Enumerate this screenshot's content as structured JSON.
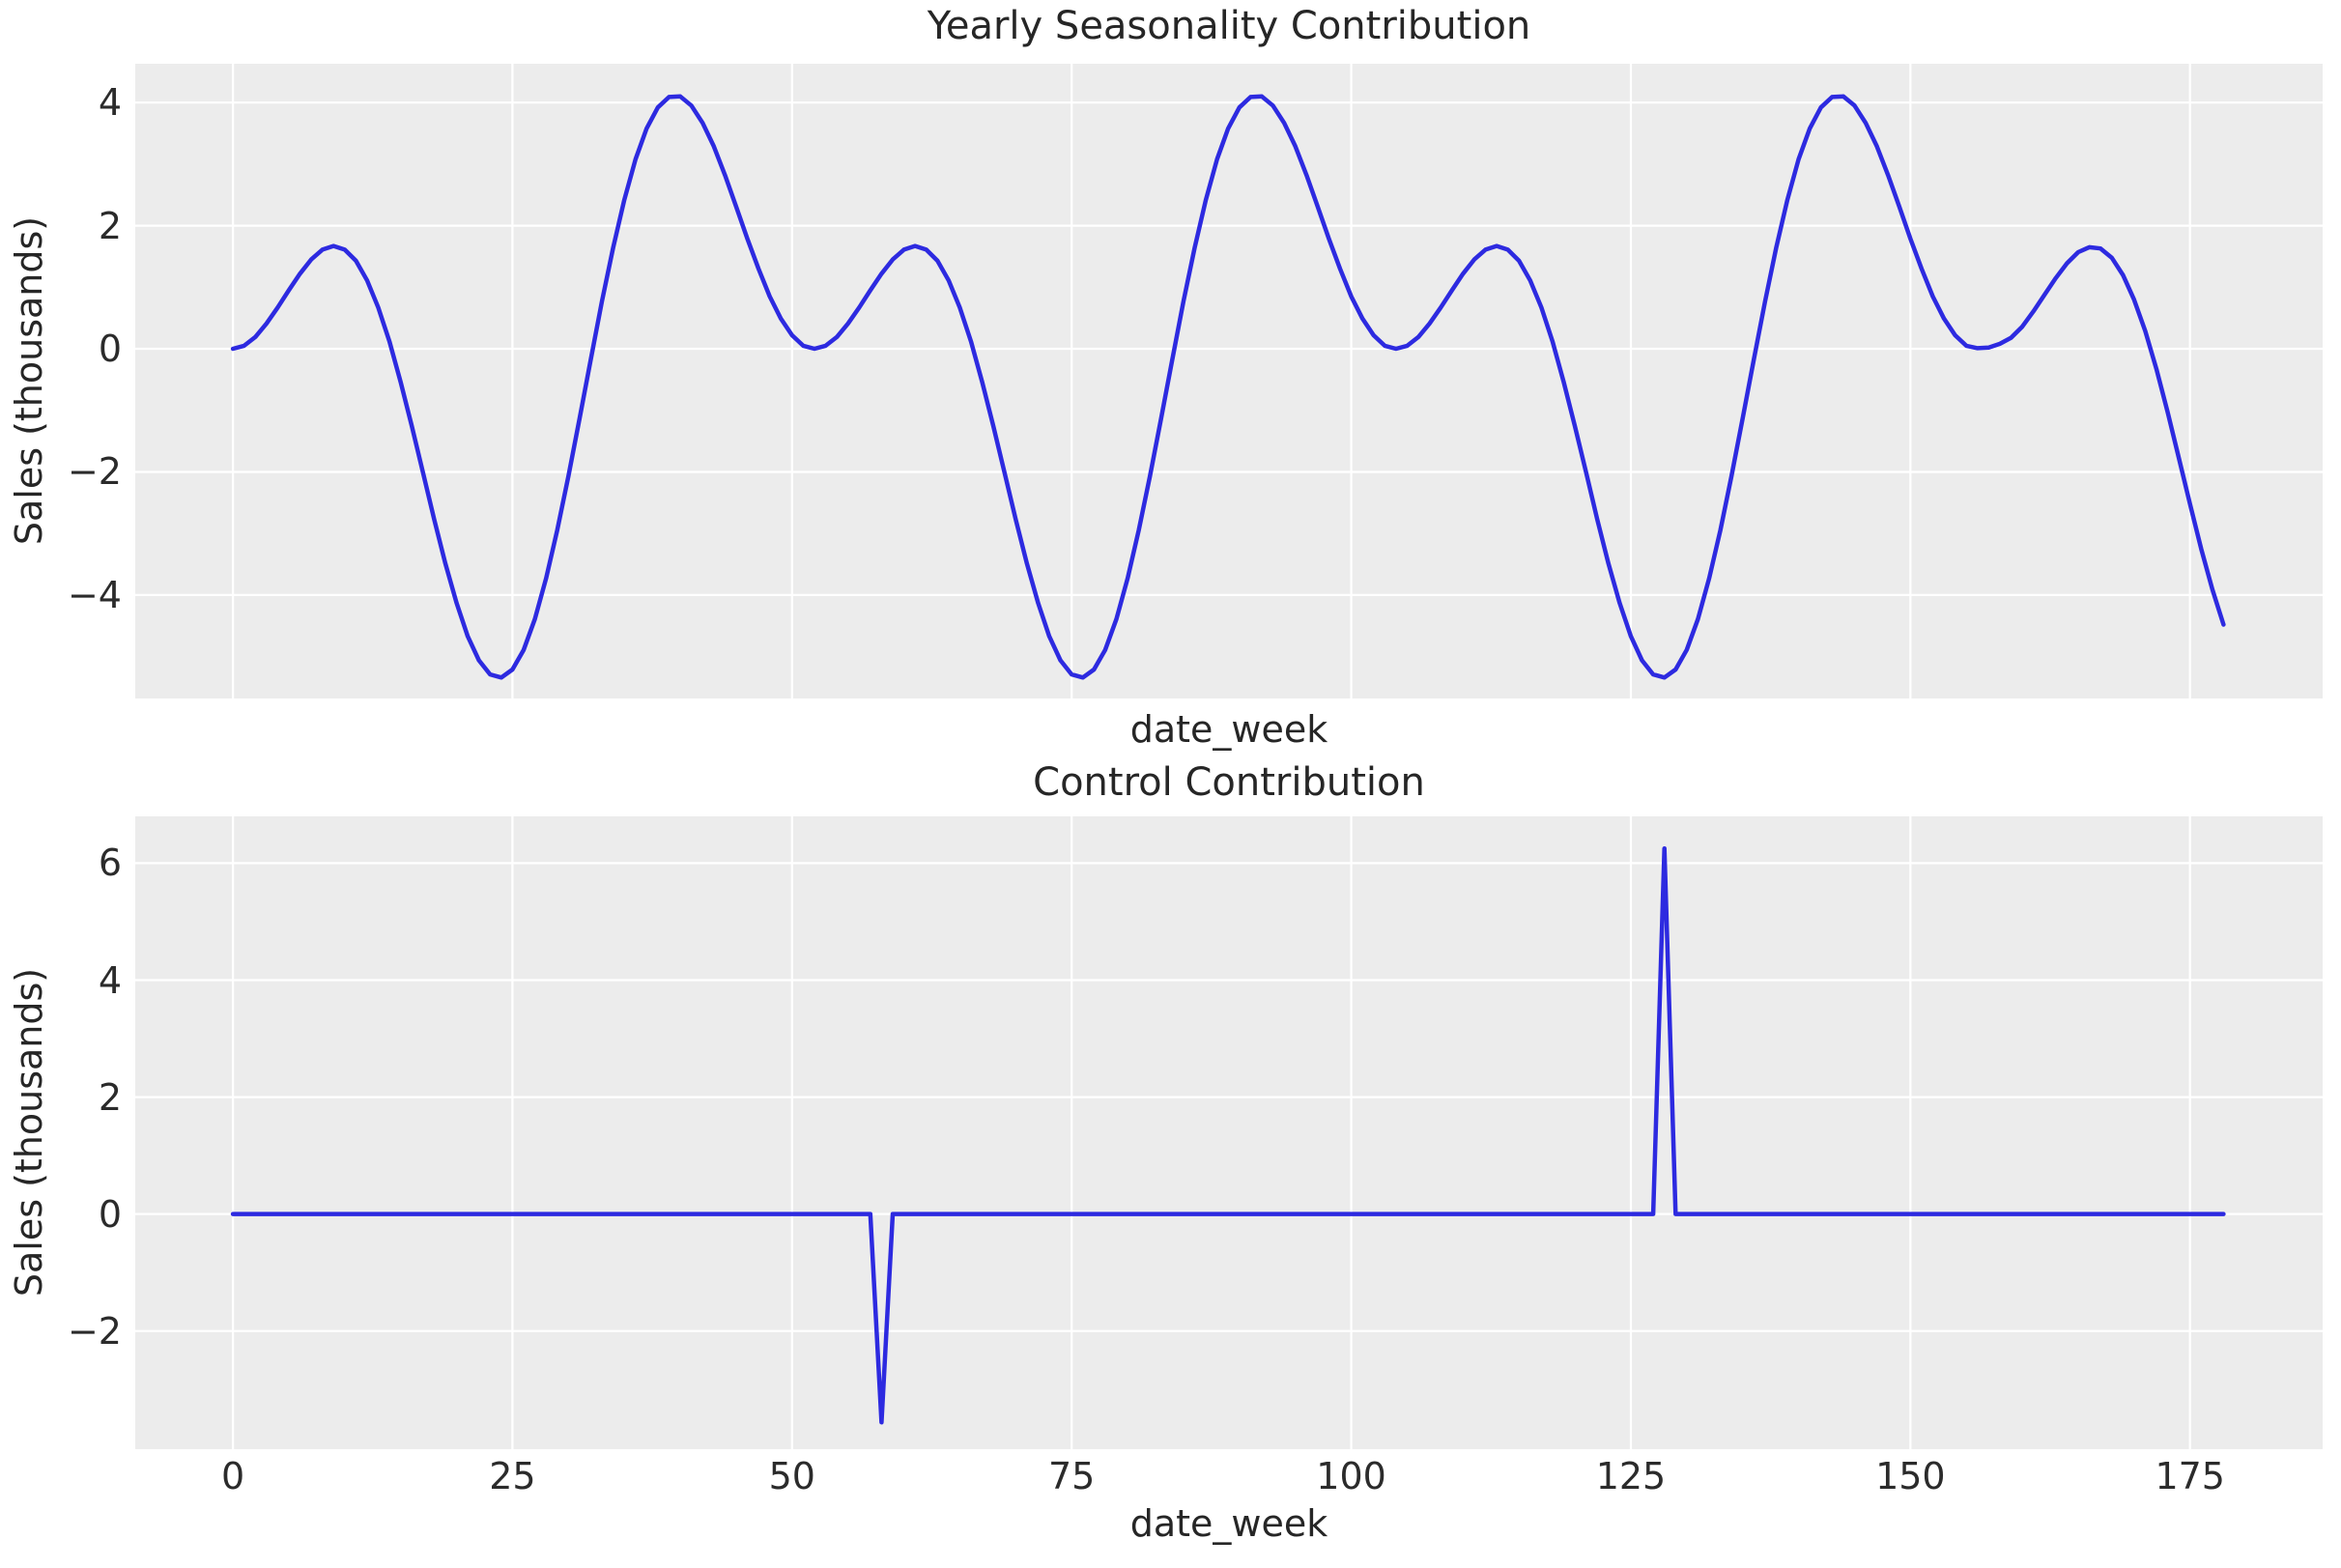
{
  "style": {
    "figure_bg": "#ffffff",
    "plot_bg": "#ececec",
    "grid_color": "#ffffff",
    "line_color": "#2d2ae0",
    "text_color": "#262626"
  },
  "chart_data": [
    {
      "type": "line",
      "title": "Yearly Seasonality Contribution",
      "xlabel": "date_week",
      "ylabel": "Sales (thousands)",
      "legend_position": "none",
      "grid": true,
      "x_start": 0,
      "x_step": 1,
      "x_end": 178,
      "xlim": [
        -8.73,
        186.86
      ],
      "ylim": [
        -5.68,
        4.63
      ],
      "xticks": [
        0,
        25,
        50,
        75,
        100,
        125,
        150,
        175
      ],
      "show_xtick_labels": false,
      "yticks": [
        4,
        2,
        0,
        -2,
        -4
      ],
      "values": [
        0,
        0.05,
        0.19,
        0.41,
        0.67,
        0.95,
        1.22,
        1.45,
        1.61,
        1.67,
        1.61,
        1.43,
        1.11,
        0.67,
        0.12,
        -0.54,
        -1.26,
        -2.01,
        -2.77,
        -3.49,
        -4.13,
        -4.67,
        -5.06,
        -5.29,
        -5.34,
        -5.21,
        -4.89,
        -4.39,
        -3.73,
        -2.95,
        -2.07,
        -1.13,
        -0.17,
        0.77,
        1.64,
        2.42,
        3.08,
        3.58,
        3.92,
        4.09,
        4.1,
        3.95,
        3.67,
        3.29,
        2.82,
        2.31,
        1.79,
        1.3,
        0.85,
        0.49,
        0.22,
        0.05,
        0,
        0.05,
        0.19,
        0.41,
        0.67,
        0.95,
        1.22,
        1.45,
        1.61,
        1.67,
        1.61,
        1.43,
        1.11,
        0.67,
        0.12,
        -0.54,
        -1.26,
        -2.01,
        -2.77,
        -3.49,
        -4.13,
        -4.67,
        -5.06,
        -5.29,
        -5.34,
        -5.21,
        -4.89,
        -4.39,
        -3.73,
        -2.95,
        -2.07,
        -1.13,
        -0.17,
        0.77,
        1.64,
        2.42,
        3.08,
        3.58,
        3.92,
        4.09,
        4.1,
        3.95,
        3.67,
        3.29,
        2.82,
        2.31,
        1.79,
        1.3,
        0.85,
        0.49,
        0.22,
        0.05,
        0,
        0.05,
        0.19,
        0.41,
        0.67,
        0.95,
        1.22,
        1.45,
        1.61,
        1.67,
        1.61,
        1.43,
        1.11,
        0.67,
        0.12,
        -0.54,
        -1.26,
        -2.01,
        -2.77,
        -3.49,
        -4.13,
        -4.67,
        -5.06,
        -5.29,
        -5.34,
        -5.21,
        -4.89,
        -4.39,
        -3.73,
        -2.95,
        -2.07,
        -1.13,
        -0.17,
        0.77,
        1.64,
        2.42,
        3.08,
        3.58,
        3.92,
        4.09,
        4.1,
        3.95,
        3.67,
        3.29,
        2.82,
        2.31,
        1.79,
        1.3,
        0.85,
        0.49,
        0.22,
        0.05,
        0.01,
        0.02,
        0.08,
        0.18,
        0.36,
        0.61,
        0.88,
        1.15,
        1.39,
        1.57,
        1.65,
        1.63,
        1.48,
        1.2,
        0.8,
        0.29,
        -0.33,
        -1.03,
        -1.77,
        -2.52,
        -3.25,
        -3.91,
        -4.48
      ]
    },
    {
      "type": "line",
      "title": "Control Contribution",
      "xlabel": "date_week",
      "ylabel": "Sales (thousands)",
      "legend_position": "none",
      "grid": true,
      "x_start": 0,
      "x_step": 1,
      "x_end": 178,
      "xlim": [
        -8.73,
        186.86
      ],
      "ylim": [
        -4.02,
        6.8
      ],
      "xticks": [
        0,
        25,
        50,
        75,
        100,
        125,
        150,
        175
      ],
      "show_xtick_labels": true,
      "yticks": [
        6,
        4,
        2,
        0,
        -2
      ],
      "spikes": [
        {
          "week": 58,
          "value": -3.56
        },
        {
          "week": 128,
          "value": 6.25
        }
      ],
      "values": [
        0,
        0,
        0,
        0,
        0,
        0,
        0,
        0,
        0,
        0,
        0,
        0,
        0,
        0,
        0,
        0,
        0,
        0,
        0,
        0,
        0,
        0,
        0,
        0,
        0,
        0,
        0,
        0,
        0,
        0,
        0,
        0,
        0,
        0,
        0,
        0,
        0,
        0,
        0,
        0,
        0,
        0,
        0,
        0,
        0,
        0,
        0,
        0,
        0,
        0,
        0,
        0,
        0,
        0,
        0,
        0,
        0,
        0,
        -3.56,
        0,
        0,
        0,
        0,
        0,
        0,
        0,
        0,
        0,
        0,
        0,
        0,
        0,
        0,
        0,
        0,
        0,
        0,
        0,
        0,
        0,
        0,
        0,
        0,
        0,
        0,
        0,
        0,
        0,
        0,
        0,
        0,
        0,
        0,
        0,
        0,
        0,
        0,
        0,
        0,
        0,
        0,
        0,
        0,
        0,
        0,
        0,
        0,
        0,
        0,
        0,
        0,
        0,
        0,
        0,
        0,
        0,
        0,
        0,
        0,
        0,
        0,
        0,
        0,
        0,
        0,
        0,
        0,
        0,
        6.25,
        0,
        0,
        0,
        0,
        0,
        0,
        0,
        0,
        0,
        0,
        0,
        0,
        0,
        0,
        0,
        0,
        0,
        0,
        0,
        0,
        0,
        0,
        0,
        0,
        0,
        0,
        0,
        0,
        0,
        0,
        0,
        0,
        0,
        0,
        0,
        0,
        0,
        0,
        0,
        0,
        0,
        0,
        0,
        0,
        0,
        0,
        0,
        0,
        0,
        0
      ]
    }
  ]
}
